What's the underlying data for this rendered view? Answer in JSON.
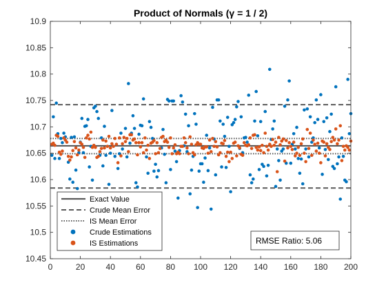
{
  "chart_data": {
    "type": "scatter",
    "title": "Product of Normals (γ = 1 / 2)",
    "xlabel": "",
    "ylabel": "",
    "xlim": [
      0,
      200
    ],
    "ylim": [
      10.45,
      10.9
    ],
    "x_ticks": [
      "0",
      "20",
      "40",
      "60",
      "80",
      "100",
      "120",
      "140",
      "160",
      "180",
      "200"
    ],
    "y_ticks": [
      "10.45",
      "10.5",
      "10.55",
      "10.6",
      "10.65",
      "10.7",
      "10.75",
      "10.8",
      "10.85",
      "10.9"
    ],
    "grid": false,
    "legend_position": "bottom-left",
    "reference_lines": [
      {
        "name": "Exact Value",
        "style": "solid",
        "values": [
          10.664
        ]
      },
      {
        "name": "Crude Mean Error",
        "style": "dashed",
        "values": [
          10.742,
          10.584
        ]
      },
      {
        "name": "IS Mean Error",
        "style": "dotted",
        "values": [
          10.678,
          10.649
        ]
      }
    ],
    "series": [
      {
        "name": "Crude Estimations",
        "color": "#0072BD",
        "n": 200,
        "center": 10.664,
        "spread": 0.058,
        "points": []
      },
      {
        "name": "IS Estimations",
        "color": "#D95319",
        "n": 200,
        "center": 10.664,
        "spread": 0.014,
        "points": []
      }
    ],
    "annotation": "RMSE Ratio: 5.06"
  },
  "colors": {
    "crude": "#0072BD",
    "is": "#D95319",
    "line": "#595959"
  }
}
